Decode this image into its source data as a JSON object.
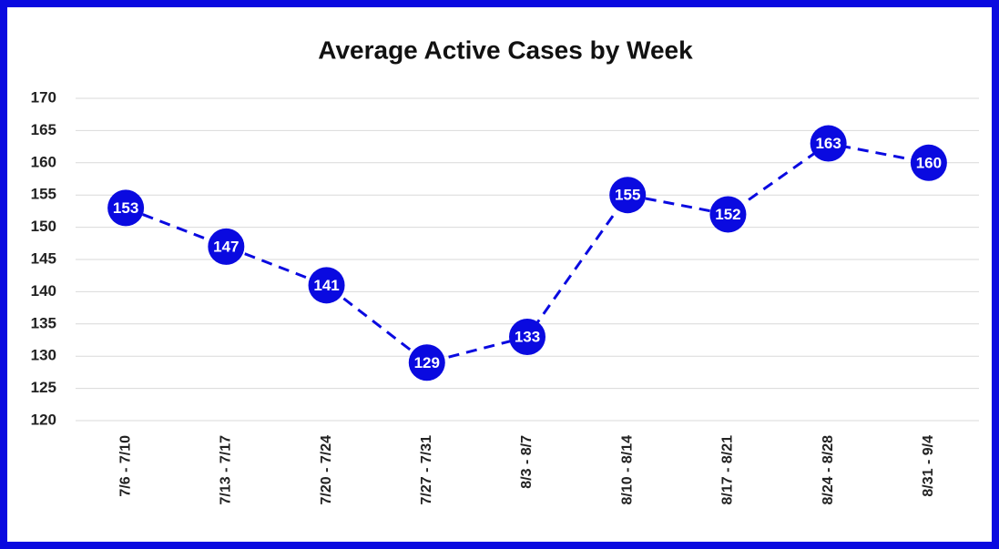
{
  "chart_data": {
    "type": "line",
    "title": "Average Active Cases by Week",
    "categories": [
      "7/6 - 7/10",
      "7/13 - 7/17",
      "7/20 - 7/24",
      "7/27 - 7/31",
      "8/3 - 8/7",
      "8/10 - 8/14",
      "8/17 - 8/21",
      "8/24 - 8/28",
      "8/31 - 9/4"
    ],
    "series": [
      {
        "name": "Average Active Cases",
        "color": "#0a0ae0",
        "values": [
          153,
          147,
          141,
          129,
          133,
          155,
          152,
          163,
          160
        ]
      }
    ],
    "ylim": [
      120,
      170
    ],
    "yticks": [
      120,
      125,
      130,
      135,
      140,
      145,
      150,
      155,
      160,
      165,
      170
    ],
    "grid": true,
    "line_style": "dashed"
  }
}
